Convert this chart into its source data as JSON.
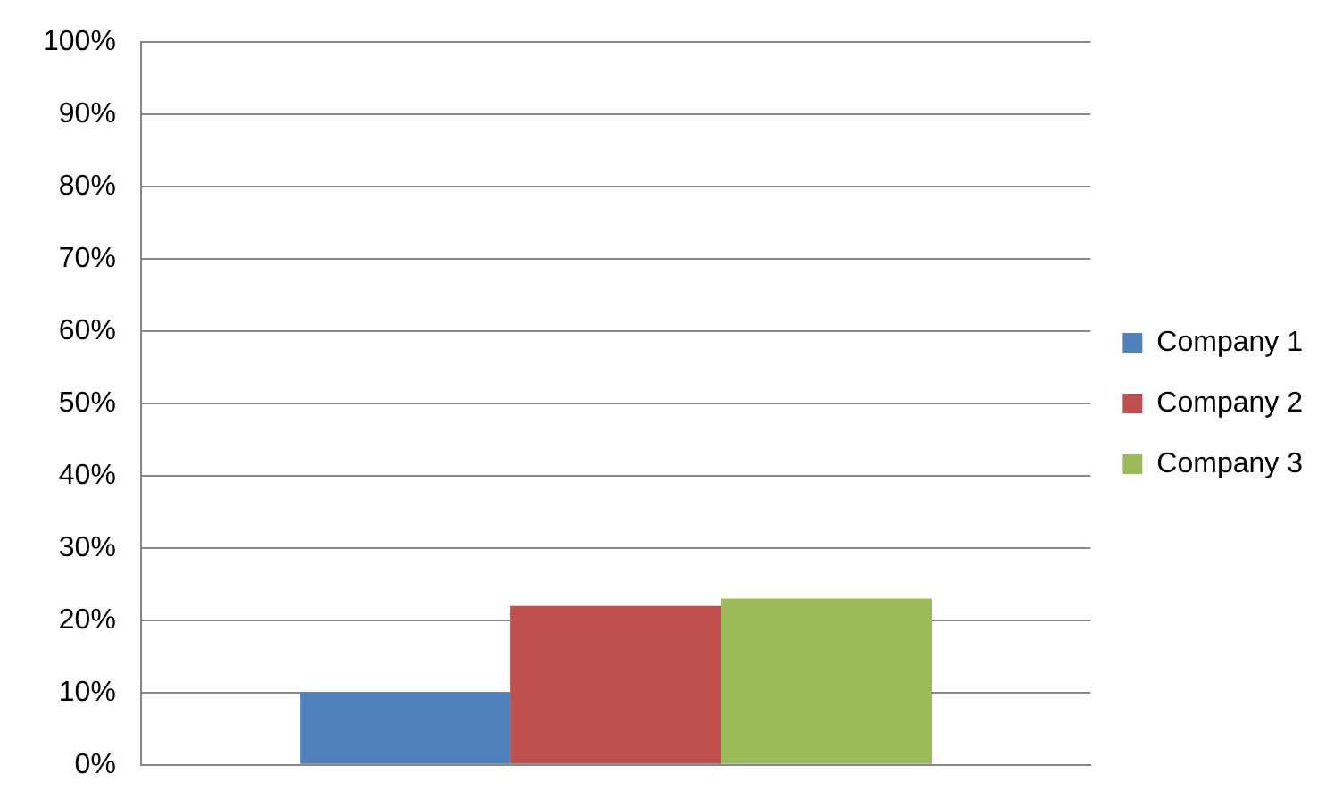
{
  "chart_data": {
    "type": "bar",
    "categories": [
      null
    ],
    "series": [
      {
        "name": "Company 1",
        "color": "#4f81bd",
        "values": [
          10
        ]
      },
      {
        "name": "Company 2",
        "color": "#c0504d",
        "values": [
          22
        ]
      },
      {
        "name": "Company 3",
        "color": "#9bbb59",
        "values": [
          23
        ]
      }
    ],
    "ylim": [
      0,
      100
    ],
    "yticks": [
      {
        "value": 0,
        "label": "0%"
      },
      {
        "value": 10,
        "label": "10%"
      },
      {
        "value": 20,
        "label": "20%"
      },
      {
        "value": 30,
        "label": "30%"
      },
      {
        "value": 40,
        "label": "40%"
      },
      {
        "value": 50,
        "label": "50%"
      },
      {
        "value": 60,
        "label": "60%"
      },
      {
        "value": 70,
        "label": "70%"
      },
      {
        "value": 80,
        "label": "80%"
      },
      {
        "value": 90,
        "label": "90%"
      },
      {
        "value": 100,
        "label": "100%"
      }
    ],
    "grid": "y",
    "legend": "right"
  }
}
